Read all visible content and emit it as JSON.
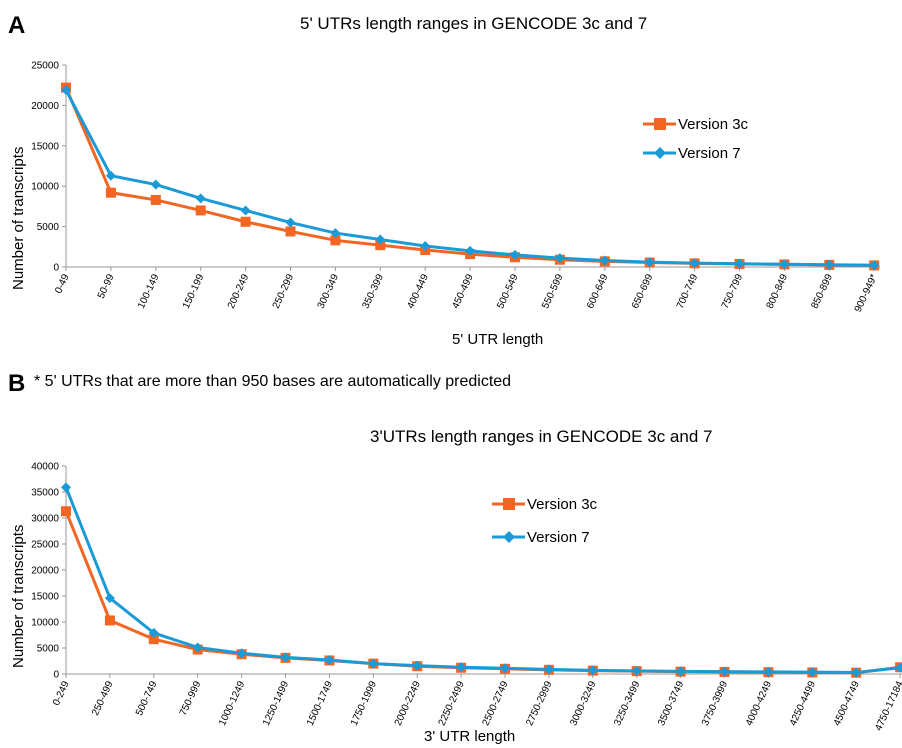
{
  "panel_a": {
    "letter": "A",
    "title": "5' UTRs length ranges in GENCODE  3c and 7",
    "xlabel": "5' UTR length",
    "ylabel": "Number of transcripts"
  },
  "panel_b": {
    "letter": "B",
    "note": "* 5' UTRs that are more than 950 bases are automatically predicted",
    "title": "3'UTRs length ranges in GENCODE 3c and 7",
    "xlabel": "3' UTR length",
    "ylabel": "Number of transcripts"
  },
  "colors": {
    "version_3c": "#f26522",
    "version_7": "#1a9bd7",
    "axis": "#999999"
  },
  "chart_data": [
    {
      "type": "line",
      "title": "5' UTRs length ranges in GENCODE  3c and 7",
      "xlabel": "5' UTR length",
      "ylabel": "Number of transcripts",
      "ylim": [
        0,
        25000
      ],
      "yticks": [
        0,
        5000,
        10000,
        15000,
        20000,
        25000
      ],
      "grid": false,
      "legend": "top-right",
      "categories": [
        "0-49",
        "50-99",
        "100-149",
        "150-199",
        "200-249",
        "250-299",
        "300-349",
        "350-399",
        "400-449",
        "450-499",
        "500-549",
        "550-599",
        "600-649",
        "650-699",
        "700-749",
        "750-799",
        "800-849",
        "850-899",
        "900-949*"
      ],
      "series": [
        {
          "name": "Version 3c",
          "marker": "square",
          "values": [
            22200,
            9200,
            8300,
            7000,
            5600,
            4400,
            3300,
            2700,
            2100,
            1600,
            1200,
            900,
            700,
            550,
            450,
            380,
            320,
            260,
            200
          ]
        },
        {
          "name": "Version 7",
          "marker": "diamond",
          "values": [
            21900,
            11300,
            10200,
            8500,
            7000,
            5500,
            4200,
            3400,
            2600,
            2000,
            1500,
            1100,
            800,
            600,
            480,
            400,
            340,
            280,
            220
          ]
        }
      ]
    },
    {
      "type": "line",
      "title": "3'UTRs length ranges in GENCODE 3c and 7",
      "xlabel": "3' UTR length",
      "ylabel": "Number of transcripts",
      "ylim": [
        0,
        40000
      ],
      "yticks": [
        0,
        5000,
        10000,
        15000,
        20000,
        25000,
        30000,
        35000,
        40000
      ],
      "grid": false,
      "legend": "top-center",
      "categories": [
        "0-249",
        "250-499",
        "500-749",
        "750-999",
        "1000-1249",
        "1250-1499",
        "1500-1749",
        "1750-1999",
        "2000-2249",
        "2250-2499",
        "2500-2749",
        "2750-2999",
        "3000-3249",
        "3250-3499",
        "3500-3749",
        "3750-3999",
        "4000-4249",
        "4250-4499",
        "4500-4749",
        "4750-17184"
      ],
      "series": [
        {
          "name": "Version 3c",
          "marker": "square",
          "values": [
            31300,
            10300,
            6700,
            4700,
            3800,
            3100,
            2600,
            2000,
            1500,
            1200,
            1000,
            800,
            650,
            550,
            450,
            400,
            350,
            300,
            250,
            1300
          ]
        },
        {
          "name": "Version 7",
          "marker": "diamond",
          "values": [
            35900,
            14600,
            7900,
            5100,
            4000,
            3200,
            2700,
            2000,
            1600,
            1300,
            1100,
            900,
            700,
            600,
            500,
            450,
            400,
            350,
            300,
            1200
          ]
        }
      ]
    }
  ]
}
